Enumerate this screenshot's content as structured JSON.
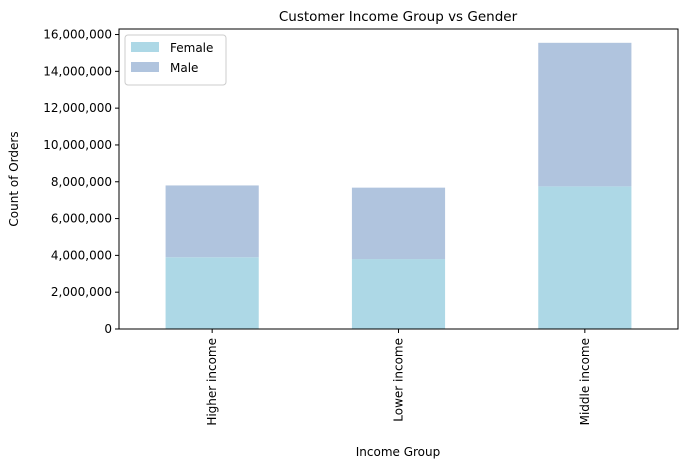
{
  "chart_data": {
    "type": "bar",
    "stacked": true,
    "title": "Customer Income Group vs Gender",
    "xlabel": "Income Group",
    "ylabel": "Count of Orders",
    "categories": [
      "Higher income",
      "Lower income",
      "Middle income"
    ],
    "series": [
      {
        "name": "Female",
        "color": "#add8e6",
        "values": [
          3900000,
          3800000,
          7750000
        ]
      },
      {
        "name": "Male",
        "color": "#b0c4de",
        "values": [
          3900000,
          3880000,
          7800000
        ]
      }
    ],
    "ylim": [
      0,
      16300000
    ],
    "yticks": [
      0,
      2000000,
      4000000,
      6000000,
      8000000,
      10000000,
      12000000,
      14000000,
      16000000
    ],
    "ytick_labels": [
      "0",
      "2,000,000",
      "4,000,000",
      "6,000,000",
      "8,000,000",
      "10,000,000",
      "12,000,000",
      "14,000,000",
      "16,000,000"
    ],
    "grid": false,
    "legend_position": "top-left"
  }
}
